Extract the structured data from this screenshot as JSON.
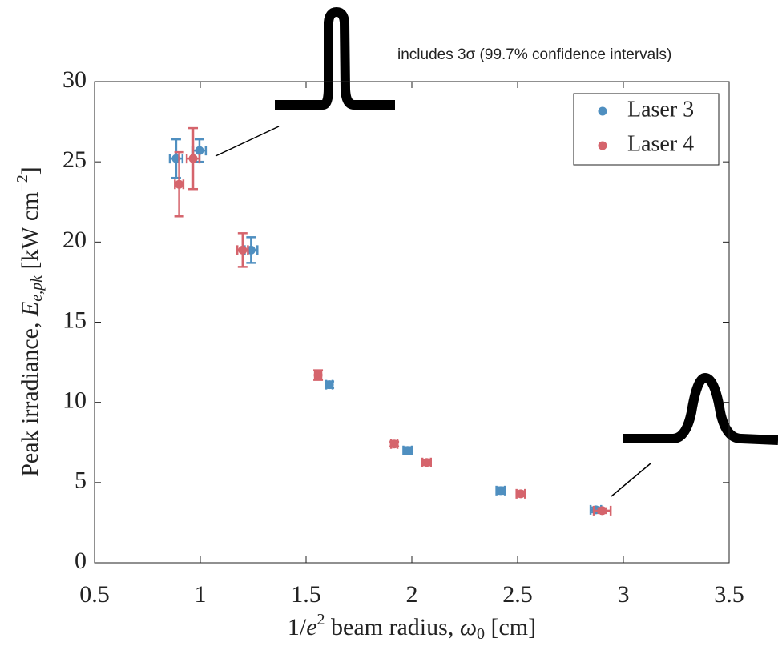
{
  "chart_data": {
    "type": "scatter",
    "annotation": "includes 3σ (99.7% confidence intervals)",
    "xlabel_parts": [
      "1/",
      "e",
      "2",
      " beam radius, ",
      "ω",
      "0",
      " [cm]"
    ],
    "ylabel_parts": [
      "Peak irradiance, ",
      "E",
      "e,pk",
      " [kW cm",
      "−2",
      "]"
    ],
    "xlim": [
      0.5,
      3.5
    ],
    "xticks": [
      0.5,
      1,
      1.5,
      2,
      2.5,
      3,
      3.5
    ],
    "ylim": [
      0,
      30
    ],
    "yticks": [
      0,
      5,
      10,
      15,
      20,
      25,
      30
    ],
    "legend": "upper right",
    "series": [
      {
        "name": "Laser 3",
        "color": "#4f8fc0",
        "x": [
          0.886,
          0.996,
          1.24,
          1.61,
          1.98,
          2.42,
          2.87
        ],
        "values": [
          25.2,
          25.7,
          19.5,
          11.1,
          7.0,
          4.5,
          3.3
        ],
        "yerr": [
          1.2,
          0.7,
          0.8,
          0.2,
          0.2,
          0.2,
          0.15
        ],
        "xerr": [
          0.03,
          0.03,
          0.03,
          0.015,
          0.02,
          0.02,
          0.025
        ]
      },
      {
        "name": "Laser 4",
        "color": "#d5646c",
        "x": [
          0.9,
          0.966,
          1.2,
          1.557,
          1.917,
          2.07,
          2.515,
          2.9
        ],
        "values": [
          23.6,
          25.2,
          19.5,
          11.7,
          7.4,
          6.25,
          4.3,
          3.25
        ],
        "yerr": [
          2.0,
          1.9,
          1.05,
          0.3,
          0.15,
          0.15,
          0.15,
          0.15
        ],
        "xerr": [
          0.02,
          0.03,
          0.025,
          0.015,
          0.015,
          0.02,
          0.02,
          0.04
        ]
      }
    ]
  }
}
